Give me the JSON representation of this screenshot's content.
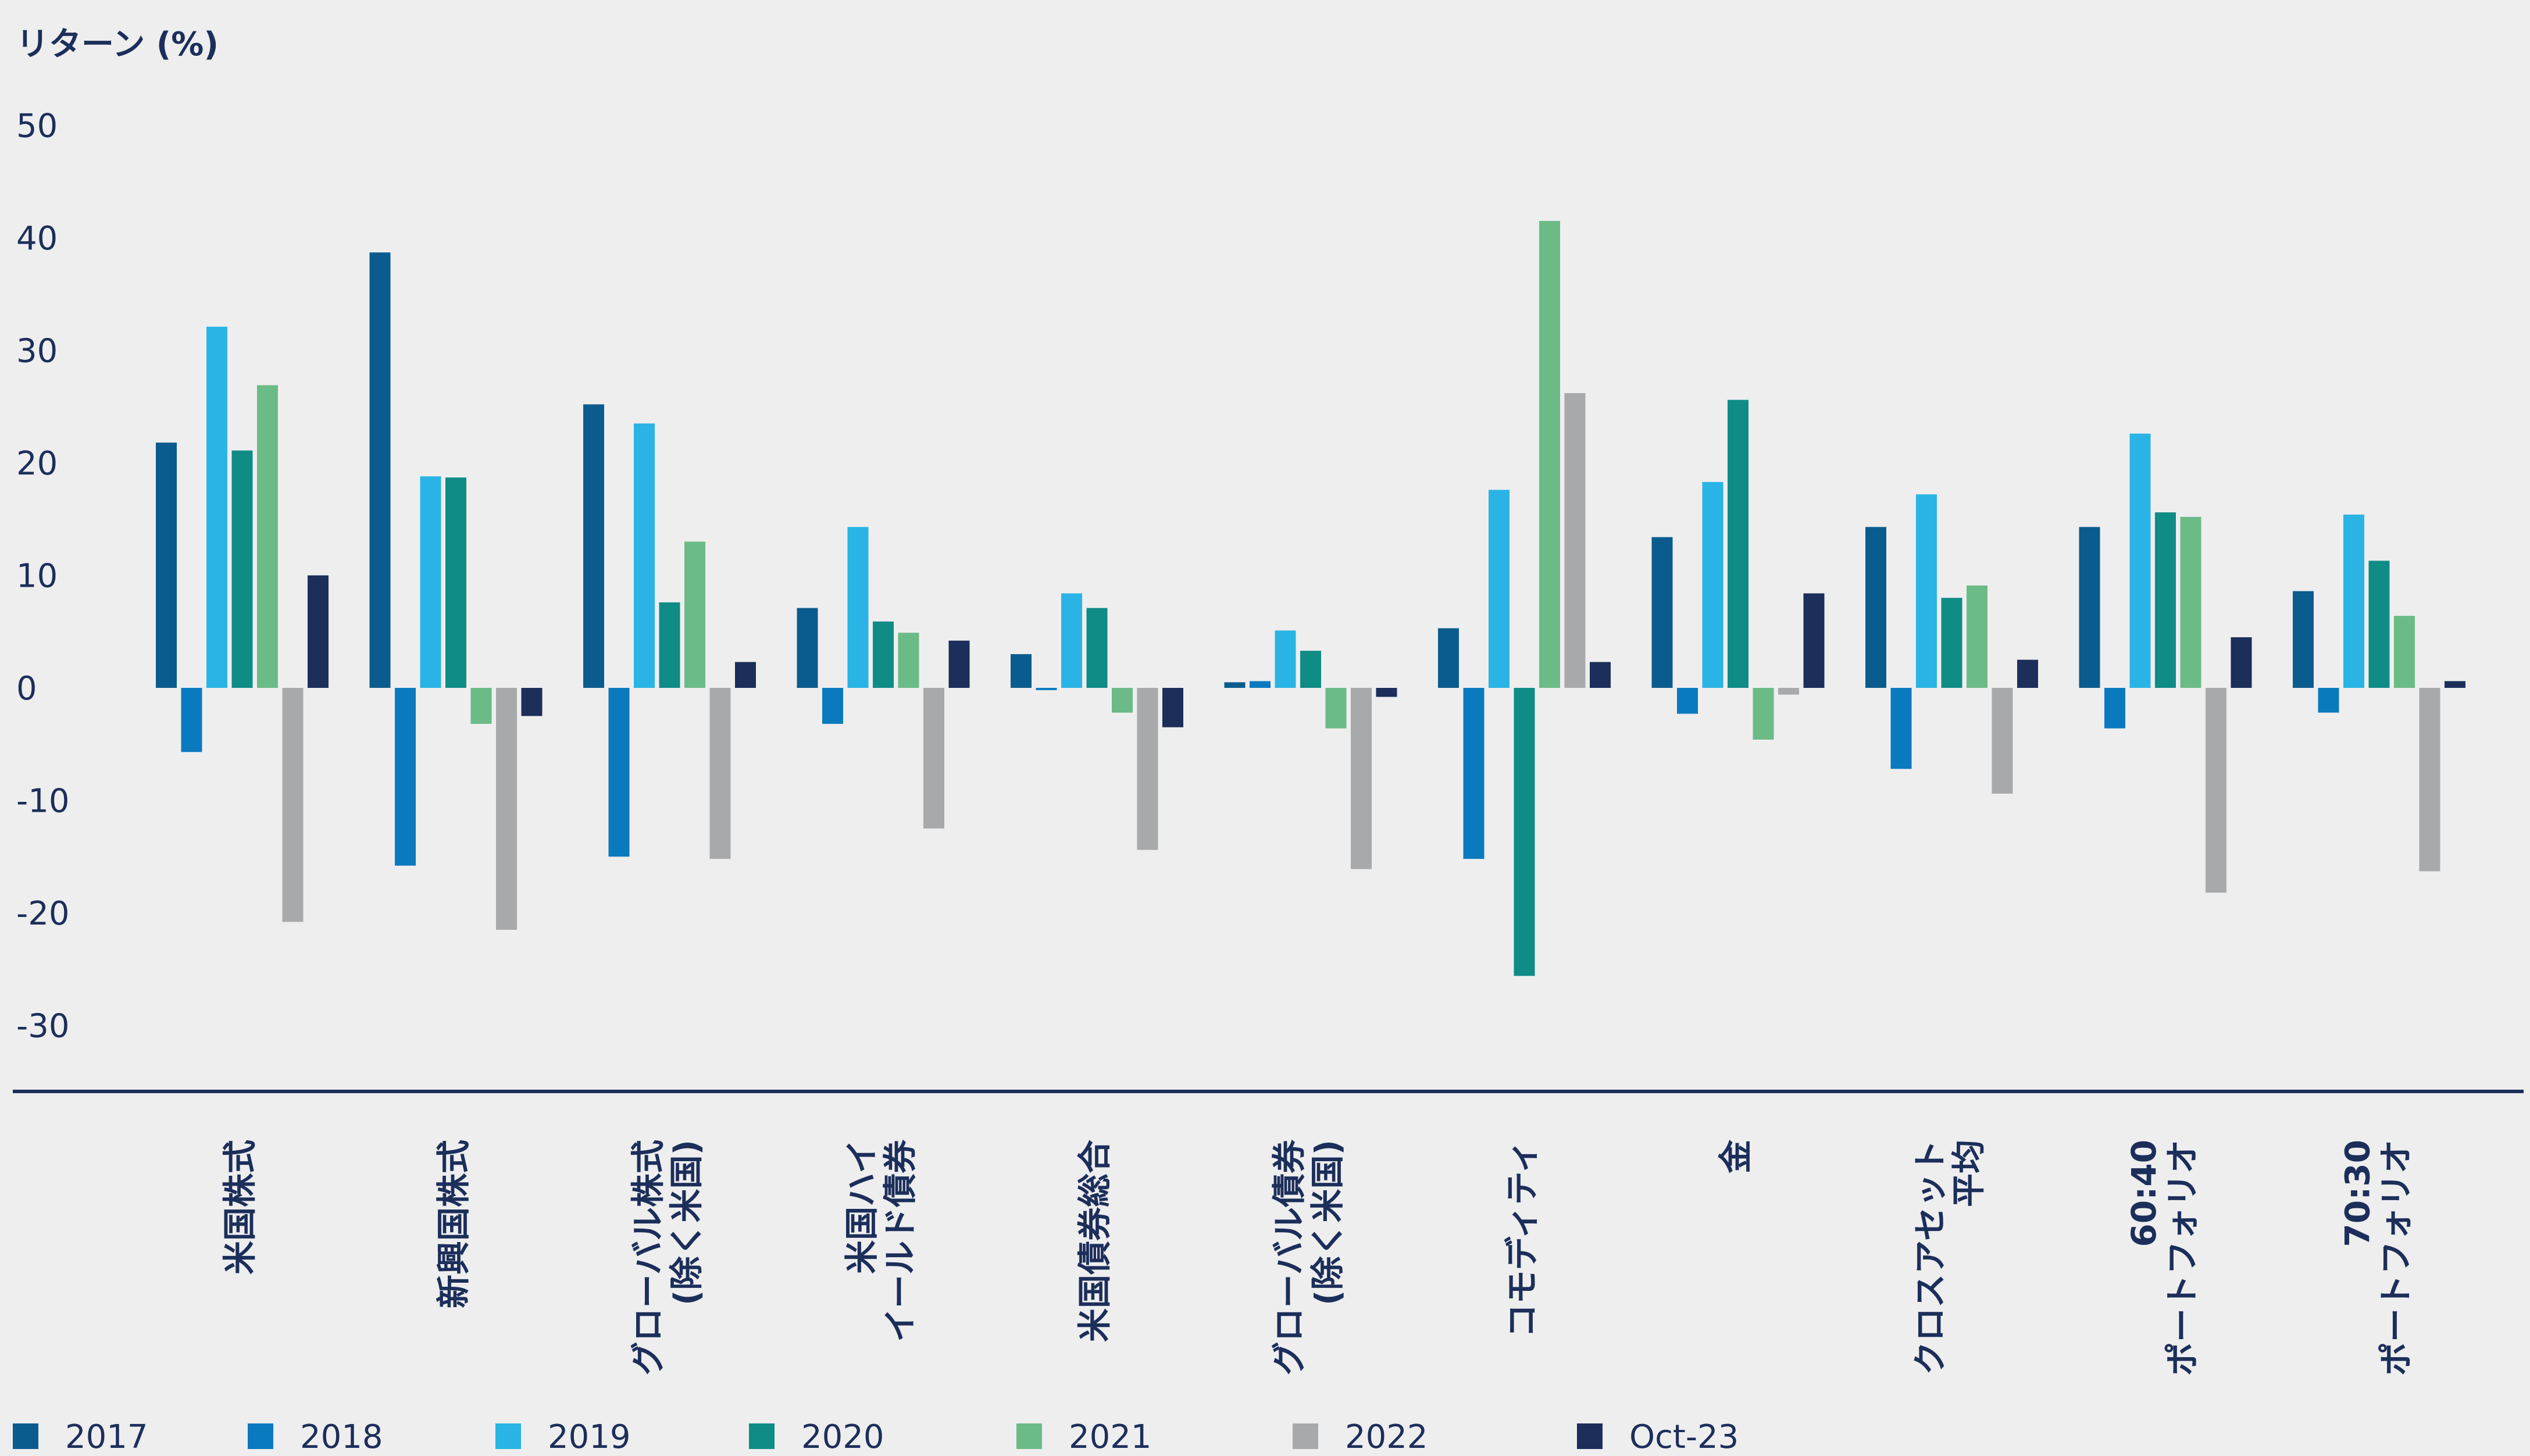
{
  "chart_data": {
    "type": "bar",
    "ylabel": "リターン (%)",
    "ylim": [
      -30,
      50
    ],
    "yticks": [
      50,
      40,
      30,
      20,
      10,
      0,
      -10,
      -20,
      -30
    ],
    "grid": false,
    "legend_position": "bottom",
    "categories": [
      [
        "米国株式"
      ],
      [
        "新興国株式"
      ],
      [
        "グローバル株式",
        "(除く米国)"
      ],
      [
        "米国ハイ",
        "イールド債券"
      ],
      [
        "米国債券総合"
      ],
      [
        "グローバル債券",
        "(除く米国)"
      ],
      [
        "コモディティ"
      ],
      [
        "金"
      ],
      [
        "クロスアセット",
        "平均"
      ],
      [
        "60:40",
        "ポートフォリオ"
      ],
      [
        "70:30",
        "ポートフォリオ"
      ]
    ],
    "series": [
      {
        "name": "2017",
        "color": "#0b5c8e",
        "values": [
          21.8,
          38.7,
          25.2,
          7.1,
          3.0,
          0.5,
          5.3,
          13.4,
          14.3,
          14.3,
          8.6
        ]
      },
      {
        "name": "2018",
        "color": "#0a7abf",
        "values": [
          -5.7,
          -15.8,
          -15.0,
          -3.2,
          -0.2,
          0.6,
          -15.2,
          -2.3,
          -7.2,
          -3.6,
          -2.2
        ]
      },
      {
        "name": "2019",
        "color": "#29b4e5",
        "values": [
          32.1,
          18.8,
          23.5,
          14.3,
          8.4,
          5.1,
          17.6,
          18.3,
          17.2,
          22.6,
          15.4
        ]
      },
      {
        "name": "2020",
        "color": "#0f8c86",
        "values": [
          21.1,
          18.7,
          7.6,
          5.9,
          7.1,
          3.3,
          -25.6,
          25.6,
          8.0,
          15.6,
          11.3
        ]
      },
      {
        "name": "2021",
        "color": "#6bbb86",
        "values": [
          26.9,
          -3.2,
          13.0,
          4.9,
          -2.2,
          -3.6,
          41.5,
          -4.6,
          9.1,
          15.2,
          6.4
        ]
      },
      {
        "name": "2022",
        "color": "#a8a9ab",
        "values": [
          -20.8,
          -21.5,
          -15.2,
          -12.5,
          -14.4,
          -16.1,
          26.2,
          -0.6,
          -9.4,
          -18.2,
          -16.3
        ]
      },
      {
        "name": "Oct-23",
        "color": "#1c2e5a",
        "values": [
          10.0,
          -2.5,
          2.3,
          4.2,
          -3.5,
          -0.8,
          2.3,
          8.4,
          2.5,
          4.5,
          0.6
        ]
      }
    ]
  }
}
